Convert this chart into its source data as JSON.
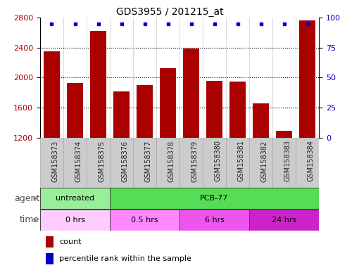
{
  "title": "GDS3955 / 201215_at",
  "samples": [
    "GSM158373",
    "GSM158374",
    "GSM158375",
    "GSM158376",
    "GSM158377",
    "GSM158378",
    "GSM158379",
    "GSM158380",
    "GSM158381",
    "GSM158382",
    "GSM158383",
    "GSM158384"
  ],
  "counts": [
    2350,
    1930,
    2620,
    1820,
    1900,
    2130,
    2390,
    1960,
    1950,
    1660,
    1290,
    2760
  ],
  "ylim": [
    1200,
    2800
  ],
  "yticks": [
    1200,
    1600,
    2000,
    2400,
    2800
  ],
  "right_yticks": [
    0,
    25,
    50,
    75,
    100
  ],
  "right_ylim": [
    0,
    100
  ],
  "bar_color": "#aa0000",
  "dot_color": "#0000cc",
  "background_color": "#ffffff",
  "agent_groups": [
    {
      "text": "untreated",
      "start": 0,
      "end": 3,
      "color": "#99ee99"
    },
    {
      "text": "PCB-77",
      "start": 3,
      "end": 12,
      "color": "#55dd55"
    }
  ],
  "time_colors": [
    "#ffccff",
    "#ff88ff",
    "#ee55ee",
    "#cc22cc"
  ],
  "time_groups": [
    {
      "text": "0 hrs",
      "start": 0,
      "end": 3
    },
    {
      "text": "0.5 hrs",
      "start": 3,
      "end": 6
    },
    {
      "text": "6 hrs",
      "start": 6,
      "end": 9
    },
    {
      "text": "24 hrs",
      "start": 9,
      "end": 12
    }
  ],
  "title_fontsize": 10,
  "tick_fontsize": 8,
  "bar_width": 0.7,
  "label_fontsize": 8,
  "row_label_fontsize": 9,
  "sample_fontsize": 7
}
